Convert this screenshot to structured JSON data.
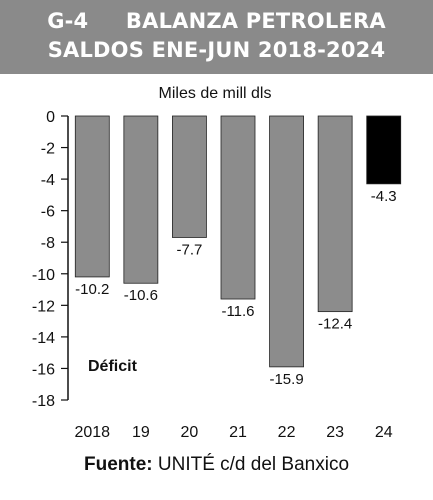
{
  "header": {
    "line1": "G-4     BALANZA PETROLERA",
    "line2": "SALDOS ENE-JUN 2018-2024"
  },
  "footer": {
    "source_label": "Fuente:",
    "source_text": " UNITÉ c/d del Banxico"
  },
  "chart_data": {
    "type": "bar",
    "unit_label": "Miles de mill dls",
    "annotation": "Déficit",
    "categories": [
      "2018",
      "19",
      "20",
      "21",
      "22",
      "23",
      "24"
    ],
    "values": [
      -10.2,
      -10.6,
      -7.7,
      -11.6,
      -15.9,
      -12.4,
      -4.3
    ],
    "value_labels": [
      "-10.2",
      "-10.6",
      "-7.7",
      "-11.6",
      "-15.9",
      "-12.4",
      "-4.3"
    ],
    "ylim": [
      -18,
      0
    ],
    "yticks": [
      0,
      -2,
      -4,
      -6,
      -8,
      -10,
      -12,
      -14,
      -16,
      -18
    ],
    "colors": {
      "bar": "#8c8c8c",
      "highlight": "#000000",
      "header": "#8a8a8a"
    },
    "highlight_index": 6,
    "grid": false
  }
}
